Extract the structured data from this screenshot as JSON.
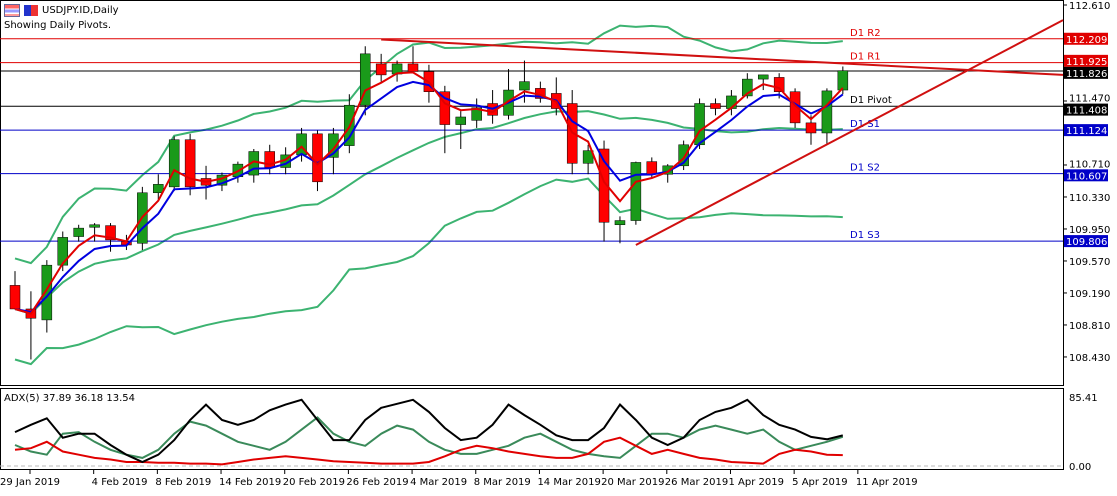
{
  "header": {
    "symbol": "USDJPY.ID,Daily",
    "subtitle": "Showing Daily Pivots."
  },
  "chart_data": {
    "type": "candlestick",
    "title": "USDJPY.ID,Daily",
    "ylim": [
      108.25,
      112.67
    ],
    "y_ticks": [
      "112.610",
      "111.470",
      "110.710",
      "110.330",
      "109.950",
      "109.570",
      "109.190",
      "108.810",
      "108.430"
    ],
    "x_ticks": [
      {
        "label": "29 Jan 2019",
        "i": 1
      },
      {
        "label": "4 Feb 2019",
        "i": 5
      },
      {
        "label": "8 Feb 2019",
        "i": 9
      },
      {
        "label": "14 Feb 2019",
        "i": 13
      },
      {
        "label": "20 Feb 2019",
        "i": 17
      },
      {
        "label": "26 Feb 2019",
        "i": 21
      },
      {
        "label": "4 Mar 2019",
        "i": 25
      },
      {
        "label": "8 Mar 2019",
        "i": 29
      },
      {
        "label": "14 Mar 2019",
        "i": 33
      },
      {
        "label": "20 Mar 2019",
        "i": 37
      },
      {
        "label": "26 Mar 2019",
        "i": 41
      },
      {
        "label": "1 Apr 2019",
        "i": 45
      },
      {
        "label": "5 Apr 2019",
        "i": 49
      },
      {
        "label": "11 Apr 2019",
        "i": 53
      }
    ],
    "candles": [
      [
        109.28,
        109.45,
        109.0,
        109.0
      ],
      [
        109.0,
        109.21,
        108.4,
        108.89
      ],
      [
        108.87,
        109.58,
        108.72,
        109.52
      ],
      [
        109.52,
        109.92,
        109.45,
        109.85
      ],
      [
        109.86,
        110.0,
        109.8,
        109.96
      ],
      [
        109.97,
        110.02,
        109.8,
        110.0
      ],
      [
        109.99,
        110.02,
        109.68,
        109.82
      ],
      [
        109.8,
        109.88,
        109.7,
        109.76
      ],
      [
        109.78,
        110.45,
        109.7,
        110.38
      ],
      [
        110.38,
        110.6,
        110.3,
        110.48
      ],
      [
        110.45,
        111.05,
        110.4,
        111.01
      ],
      [
        111.01,
        111.08,
        110.35,
        110.45
      ],
      [
        110.55,
        110.7,
        110.3,
        110.47
      ],
      [
        110.47,
        110.62,
        110.4,
        110.59
      ],
      [
        110.57,
        110.75,
        110.5,
        110.72
      ],
      [
        110.59,
        110.9,
        110.5,
        110.87
      ],
      [
        110.87,
        110.95,
        110.6,
        110.68
      ],
      [
        110.68,
        110.92,
        110.6,
        110.83
      ],
      [
        110.83,
        111.15,
        110.75,
        111.08
      ],
      [
        111.08,
        111.12,
        110.4,
        110.51
      ],
      [
        110.8,
        111.15,
        110.6,
        111.08
      ],
      [
        110.94,
        111.55,
        110.85,
        111.42
      ],
      [
        111.42,
        112.12,
        111.3,
        112.03
      ],
      [
        111.91,
        112.03,
        111.7,
        111.78
      ],
      [
        111.79,
        111.95,
        111.7,
        111.91
      ],
      [
        111.91,
        112.12,
        111.8,
        111.82
      ],
      [
        111.82,
        111.9,
        111.45,
        111.58
      ],
      [
        111.58,
        111.65,
        110.85,
        111.19
      ],
      [
        111.19,
        111.35,
        110.9,
        111.28
      ],
      [
        111.24,
        111.5,
        111.15,
        111.39
      ],
      [
        111.44,
        111.6,
        111.2,
        111.3
      ],
      [
        111.3,
        111.85,
        111.25,
        111.6
      ],
      [
        111.6,
        111.95,
        111.45,
        111.7
      ],
      [
        111.62,
        111.7,
        111.45,
        111.5
      ],
      [
        111.56,
        111.75,
        111.3,
        111.38
      ],
      [
        111.44,
        111.6,
        110.6,
        110.73
      ],
      [
        110.73,
        110.95,
        110.6,
        110.88
      ],
      [
        110.9,
        111.0,
        109.8,
        110.03
      ],
      [
        110.0,
        110.1,
        109.78,
        110.05
      ],
      [
        110.05,
        110.75,
        110.0,
        110.74
      ],
      [
        110.75,
        110.8,
        110.55,
        110.6
      ],
      [
        110.6,
        110.72,
        110.5,
        110.7
      ],
      [
        110.7,
        111.0,
        110.65,
        110.95
      ],
      [
        110.95,
        111.5,
        110.9,
        111.44
      ],
      [
        111.44,
        111.5,
        111.3,
        111.38
      ],
      [
        111.38,
        111.6,
        111.3,
        111.53
      ],
      [
        111.53,
        111.8,
        111.5,
        111.73
      ],
      [
        111.73,
        111.78,
        111.6,
        111.78
      ],
      [
        111.75,
        111.8,
        111.5,
        111.58
      ],
      [
        111.58,
        111.62,
        111.15,
        111.21
      ],
      [
        111.21,
        111.3,
        110.95,
        111.09
      ],
      [
        111.09,
        111.62,
        110.95,
        111.59
      ],
      [
        111.6,
        111.88,
        111.55,
        111.83
      ]
    ],
    "pivots": [
      {
        "name": "D1 R2",
        "value": 112.209,
        "label": "112.209",
        "color": "#e00000"
      },
      {
        "name": "D1 R1",
        "value": 111.925,
        "label": "111.925",
        "color": "#e00000"
      },
      {
        "name": "D1 Pivot",
        "value": 111.408,
        "label": "111.408",
        "color": "#000000"
      },
      {
        "name": "D1 S1",
        "value": 111.124,
        "label": "111.124",
        "color": "#0000c8"
      },
      {
        "name": "D1 S2",
        "value": 110.607,
        "label": "110.607",
        "color": "#0000c8"
      },
      {
        "name": "D1 S3",
        "value": 109.806,
        "label": "109.806",
        "color": "#0000c8"
      }
    ],
    "current_price": {
      "value": 111.826,
      "label": "111.826"
    },
    "trendlines": [
      {
        "from": [
          23,
          112.2
        ],
        "to": [
          "right",
          111.78
        ],
        "color": "#d01010"
      },
      {
        "from": [
          39,
          109.76
        ],
        "to": [
          "right",
          112.43
        ],
        "color": "#d01010"
      }
    ],
    "adx": {
      "label": "ADX(5) 37.89 36.18 13.54",
      "max_label": "85.41",
      "min_label": "0.00",
      "ylim": [
        0,
        85.41
      ],
      "adx": [
        42,
        51,
        59,
        35,
        40,
        40,
        26,
        14,
        5,
        14,
        32,
        57,
        76,
        57,
        51,
        57,
        69,
        76,
        82,
        57,
        32,
        32,
        57,
        72,
        77,
        82,
        67,
        47,
        32,
        35,
        51,
        76,
        63,
        51,
        38,
        32,
        32,
        47,
        76,
        57,
        35,
        26,
        35,
        57,
        67,
        72,
        82,
        63,
        51,
        45,
        36,
        33,
        37.89
      ],
      "plus_di": [
        26,
        18,
        14,
        40,
        42,
        30,
        20,
        14,
        10,
        20,
        40,
        55,
        50,
        40,
        30,
        25,
        20,
        30,
        45,
        60,
        40,
        30,
        25,
        40,
        50,
        45,
        30,
        20,
        15,
        15,
        20,
        25,
        35,
        40,
        30,
        20,
        15,
        12,
        10,
        25,
        40,
        40,
        35,
        45,
        50,
        45,
        40,
        45,
        30,
        20,
        25,
        30,
        36.18
      ],
      "minus_di": [
        20,
        22,
        30,
        18,
        14,
        10,
        8,
        5,
        5,
        4,
        4,
        3,
        3,
        2,
        5,
        8,
        10,
        12,
        10,
        8,
        6,
        5,
        4,
        3,
        3,
        3,
        5,
        12,
        20,
        25,
        22,
        18,
        15,
        12,
        10,
        10,
        15,
        30,
        35,
        25,
        15,
        20,
        15,
        10,
        8,
        5,
        4,
        3,
        15,
        20,
        18,
        14,
        13.54
      ]
    },
    "colors": {
      "bull": "#1a9a1a",
      "bear": "#ff0000",
      "ma_fast": "#e00000",
      "ma_slow": "#0000e0",
      "bands": "#3cb371"
    }
  }
}
